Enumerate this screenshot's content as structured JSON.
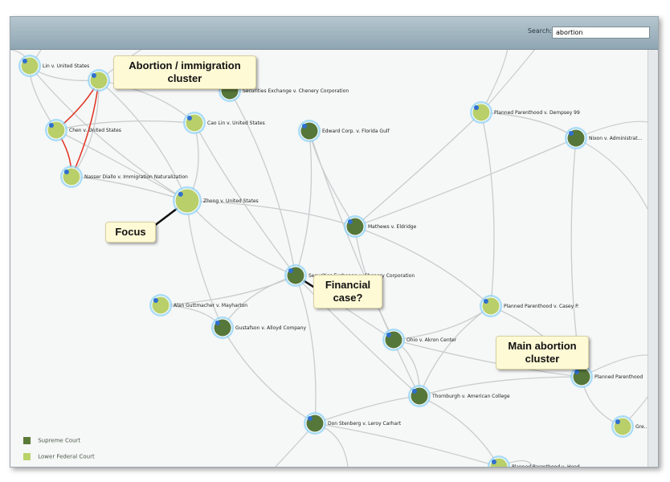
{
  "search": {
    "label": "Search:",
    "value": "abortion"
  },
  "nodes": [
    {
      "id": "n1",
      "label": "Lin v. United States",
      "type": "lower"
    },
    {
      "id": "n2",
      "label": "",
      "type": "lower"
    },
    {
      "id": "n3",
      "label": "Securities Exchange v. Chenery Corporation",
      "type": "supreme"
    },
    {
      "id": "n4",
      "label": "Chen v. United States",
      "type": "lower"
    },
    {
      "id": "n5",
      "label": "Cao Lin v. United States",
      "type": "lower"
    },
    {
      "id": "n6",
      "label": "Edward Corp. v. Florida Gulf",
      "type": "supreme"
    },
    {
      "id": "n7",
      "label": "Planned Parenthood v. Dempsey 99",
      "type": "lower"
    },
    {
      "id": "n8",
      "label": "Nixon v. Administrat...",
      "type": "supreme"
    },
    {
      "id": "n9",
      "label": "Nasser Diallo v. Immigration Naturalization",
      "type": "lower"
    },
    {
      "id": "n10",
      "label": "Zhong v. United States",
      "type": "lower"
    },
    {
      "id": "n11",
      "label": "Mathews v. Eldridge",
      "type": "supreme"
    },
    {
      "id": "n12",
      "label": "Securities Exchange v. Chenery Corporation",
      "type": "supreme"
    },
    {
      "id": "n13",
      "label": "Alan Guttmacher v. Mayharton",
      "type": "lower"
    },
    {
      "id": "n14",
      "label": "Gustafson v. Alloyd Company",
      "type": "supreme"
    },
    {
      "id": "n15",
      "label": "Planned Parenthood v. Casey P.",
      "type": "lower"
    },
    {
      "id": "n16",
      "label": "Ohio v. Akron Center",
      "type": "supreme"
    },
    {
      "id": "n17",
      "label": "Planned Parenthood",
      "type": "supreme"
    },
    {
      "id": "n18",
      "label": "Thornburgh v. American College",
      "type": "supreme"
    },
    {
      "id": "n19",
      "label": "Don Stenberg v. Leroy Carhart",
      "type": "supreme"
    },
    {
      "id": "n20",
      "label": "Gre...",
      "type": "lower"
    },
    {
      "id": "n21",
      "label": "Planned Parenthood v. Heed",
      "type": "lower"
    }
  ],
  "callouts": {
    "abortion_immigration": [
      "Abortion / immigration",
      "cluster"
    ],
    "focus": "Focus",
    "financial": [
      "Financial",
      "case?"
    ],
    "main_abortion": [
      "Main abortion",
      "cluster"
    ]
  },
  "legend": [
    {
      "label": "Supreme Court",
      "color": "#5b7a38"
    },
    {
      "label": "Lower Federal Court",
      "color": "#b9d36a"
    }
  ],
  "colors": {
    "supreme": "#56773a",
    "lower": "#b8cf6a",
    "halo": "#8fd3f5",
    "edge": "#c9cccd",
    "highlight_edge": "#e0301e"
  }
}
